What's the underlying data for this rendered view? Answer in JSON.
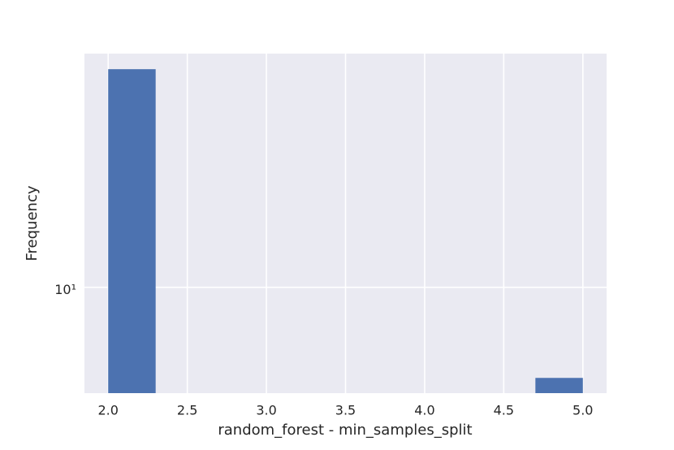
{
  "chart_data": {
    "type": "histogram",
    "xlabel": "random_forest - min_samples_split",
    "ylabel": "Frequency",
    "bins": [
      2.0,
      2.3,
      2.6,
      2.9,
      3.2,
      3.5,
      3.8,
      4.1,
      4.4,
      4.7,
      5.0
    ],
    "values": [
      53,
      0,
      0,
      0,
      0,
      0,
      0,
      0,
      0,
      5
    ],
    "color": "#4c72b0",
    "xlim": [
      1.85,
      5.15
    ],
    "ylim": [
      4.45,
      59.7
    ],
    "ylog": true,
    "grid": true,
    "xticks": [
      {
        "value": 2,
        "label": "2.0"
      },
      2.5,
      {
        "value": 3,
        "label": "3.0"
      },
      3.5,
      {
        "value": 4,
        "label": "4.0"
      },
      4.5,
      {
        "value": 5,
        "label": "5.0"
      }
    ],
    "yticks": [
      {
        "value": 10,
        "label": "10¹"
      }
    ]
  }
}
